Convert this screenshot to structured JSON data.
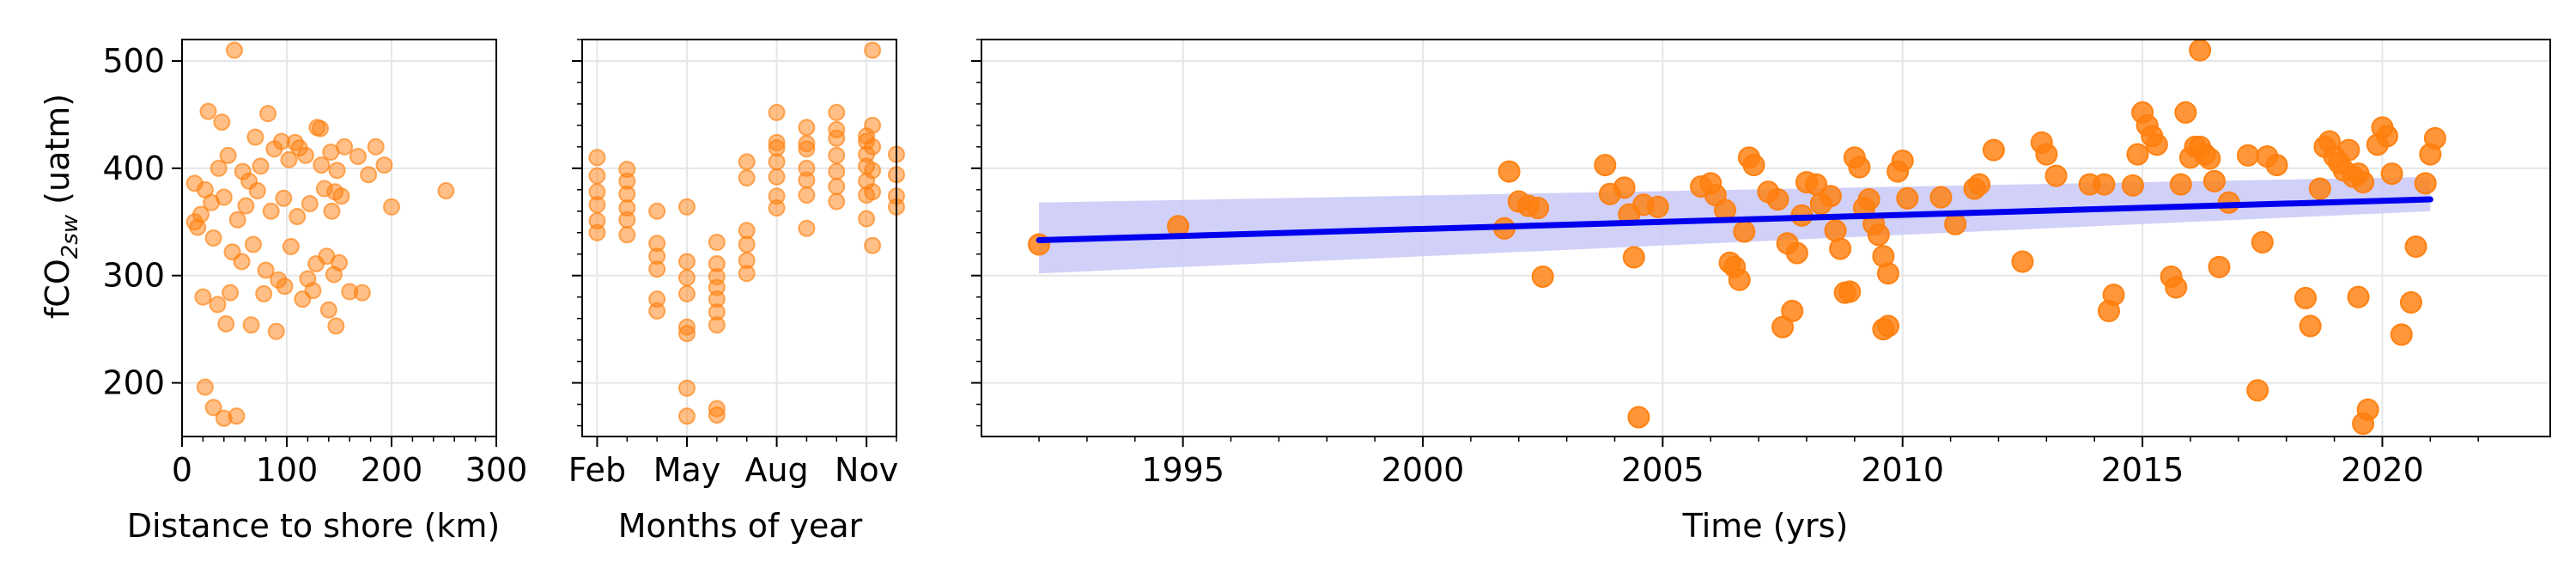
{
  "chart_data": [
    {
      "panel": "distance",
      "type": "scatter",
      "xlabel": "Distance to shore (km)",
      "ylabel_main": "fCO",
      "ylabel_sub": "2sw",
      "ylabel_unit": " (uatm)",
      "xlim": [
        0,
        300
      ],
      "ylim": [
        150,
        520
      ],
      "x_ticks": [
        0,
        100,
        200,
        300
      ],
      "y_ticks": [
        200,
        300,
        400,
        500
      ],
      "grid": true,
      "points": [
        [
          50,
          510
        ],
        [
          25,
          453
        ],
        [
          38,
          443
        ],
        [
          82,
          451
        ],
        [
          129,
          438
        ],
        [
          95,
          425
        ],
        [
          108,
          424
        ],
        [
          185,
          420
        ],
        [
          70,
          429
        ],
        [
          12,
          386
        ],
        [
          22,
          380
        ],
        [
          35,
          400
        ],
        [
          44,
          412
        ],
        [
          58,
          397
        ],
        [
          64,
          388
        ],
        [
          75,
          402
        ],
        [
          88,
          418
        ],
        [
          102,
          408
        ],
        [
          118,
          412
        ],
        [
          133,
          403
        ],
        [
          142,
          415
        ],
        [
          148,
          398
        ],
        [
          155,
          420
        ],
        [
          168,
          411
        ],
        [
          178,
          394
        ],
        [
          193,
          403
        ],
        [
          15,
          345
        ],
        [
          18,
          357
        ],
        [
          28,
          368
        ],
        [
          40,
          373
        ],
        [
          53,
          352
        ],
        [
          61,
          365
        ],
        [
          72,
          379
        ],
        [
          85,
          360
        ],
        [
          97,
          372
        ],
        [
          110,
          355
        ],
        [
          122,
          367
        ],
        [
          136,
          381
        ],
        [
          143,
          360
        ],
        [
          152,
          374
        ],
        [
          200,
          364
        ],
        [
          252,
          379
        ],
        [
          30,
          335
        ],
        [
          48,
          322
        ],
        [
          57,
          313
        ],
        [
          68,
          329
        ],
        [
          80,
          305
        ],
        [
          92,
          296
        ],
        [
          104,
          327
        ],
        [
          120,
          297
        ],
        [
          128,
          311
        ],
        [
          138,
          318
        ],
        [
          145,
          301
        ],
        [
          150,
          312
        ],
        [
          20,
          280
        ],
        [
          34,
          273
        ],
        [
          46,
          284
        ],
        [
          66,
          254
        ],
        [
          78,
          283
        ],
        [
          90,
          248
        ],
        [
          98,
          290
        ],
        [
          115,
          278
        ],
        [
          125,
          286
        ],
        [
          140,
          268
        ],
        [
          147,
          253
        ],
        [
          160,
          285
        ],
        [
          172,
          284
        ],
        [
          22,
          196
        ],
        [
          30,
          177
        ],
        [
          40,
          167
        ],
        [
          52,
          169
        ],
        [
          42,
          255
        ],
        [
          12,
          350
        ],
        [
          112,
          419
        ],
        [
          132,
          437
        ],
        [
          146,
          378
        ]
      ]
    },
    {
      "panel": "months",
      "type": "scatter",
      "xlabel": "Months of year",
      "x_tick_labels": [
        "Feb",
        "May",
        "Aug",
        "Nov"
      ],
      "x_tick_values": [
        2,
        5,
        8,
        11
      ],
      "xlim": [
        1.5,
        12.0
      ],
      "ylim": [
        150,
        520
      ],
      "grid": true,
      "points": [
        [
          2,
          410
        ],
        [
          2,
          393
        ],
        [
          2,
          378
        ],
        [
          2,
          366
        ],
        [
          2,
          351
        ],
        [
          2,
          340
        ],
        [
          3,
          399
        ],
        [
          3,
          388
        ],
        [
          3,
          376
        ],
        [
          3,
          363
        ],
        [
          3,
          352
        ],
        [
          3,
          338
        ],
        [
          4,
          360
        ],
        [
          4,
          330
        ],
        [
          4,
          318
        ],
        [
          4,
          306
        ],
        [
          4,
          278
        ],
        [
          4,
          267
        ],
        [
          5,
          364
        ],
        [
          5,
          313
        ],
        [
          5,
          298
        ],
        [
          5,
          283
        ],
        [
          5,
          252
        ],
        [
          5,
          246
        ],
        [
          5,
          195
        ],
        [
          5,
          169
        ],
        [
          6,
          331
        ],
        [
          6,
          311
        ],
        [
          6,
          299
        ],
        [
          6,
          289
        ],
        [
          6,
          278
        ],
        [
          6,
          266
        ],
        [
          6,
          254
        ],
        [
          6,
          176
        ],
        [
          6,
          170
        ],
        [
          7,
          342
        ],
        [
          7,
          329
        ],
        [
          7,
          314
        ],
        [
          7,
          302
        ],
        [
          7,
          406
        ],
        [
          7,
          391
        ],
        [
          8,
          452
        ],
        [
          8,
          424
        ],
        [
          8,
          406
        ],
        [
          8,
          392
        ],
        [
          8,
          374
        ],
        [
          8,
          363
        ],
        [
          8,
          419
        ],
        [
          9,
          438
        ],
        [
          9,
          418
        ],
        [
          9,
          400
        ],
        [
          9,
          389
        ],
        [
          9,
          375
        ],
        [
          9,
          344
        ],
        [
          9,
          423
        ],
        [
          10,
          452
        ],
        [
          10,
          428
        ],
        [
          10,
          412
        ],
        [
          10,
          397
        ],
        [
          10,
          383
        ],
        [
          10,
          369
        ],
        [
          10,
          436
        ],
        [
          11,
          425
        ],
        [
          11,
          413
        ],
        [
          11,
          402
        ],
        [
          11,
          388
        ],
        [
          11,
          375
        ],
        [
          11,
          353
        ],
        [
          11,
          430
        ],
        [
          11.2,
          510
        ],
        [
          11.2,
          440
        ],
        [
          11.2,
          420
        ],
        [
          11.2,
          398
        ],
        [
          11.2,
          378
        ],
        [
          11.2,
          328
        ],
        [
          12,
          413
        ],
        [
          12,
          394
        ],
        [
          12,
          374
        ],
        [
          12,
          364
        ]
      ]
    },
    {
      "panel": "time",
      "type": "scatter",
      "xlabel": "Time (yrs)",
      "xlim": [
        1990.8,
        2023.5
      ],
      "ylim": [
        150,
        520
      ],
      "x_ticks": [
        1995,
        2000,
        2005,
        2010,
        2015,
        2020
      ],
      "grid": true,
      "trend": {
        "x": [
          1992.0,
          2021.0
        ],
        "y": [
          333,
          371
        ],
        "band_lower": [
          302,
          360
        ],
        "band_upper": [
          368,
          392
        ]
      },
      "colors": {
        "points": "#ff7f0e",
        "trend": "#0000ee",
        "band": "#c8c8f8"
      },
      "points": [
        [
          1992.0,
          329
        ],
        [
          1994.9,
          346
        ],
        [
          2001.8,
          397
        ],
        [
          2001.7,
          344
        ],
        [
          2002.0,
          369
        ],
        [
          2002.2,
          365
        ],
        [
          2002.4,
          363
        ],
        [
          2002.5,
          299
        ],
        [
          2003.8,
          403
        ],
        [
          2003.9,
          376
        ],
        [
          2004.2,
          382
        ],
        [
          2004.3,
          357
        ],
        [
          2004.4,
          317
        ],
        [
          2004.6,
          366
        ],
        [
          2004.5,
          168
        ],
        [
          2004.9,
          364
        ],
        [
          2005.8,
          383
        ],
        [
          2006.0,
          386
        ],
        [
          2006.1,
          375
        ],
        [
          2006.3,
          361
        ],
        [
          2006.4,
          312
        ],
        [
          2006.5,
          308
        ],
        [
          2006.6,
          296
        ],
        [
          2006.8,
          410
        ],
        [
          2006.9,
          403
        ],
        [
          2006.7,
          341
        ],
        [
          2007.2,
          378
        ],
        [
          2007.4,
          371
        ],
        [
          2007.6,
          330
        ],
        [
          2007.8,
          321
        ],
        [
          2007.9,
          356
        ],
        [
          2007.5,
          252
        ],
        [
          2007.7,
          267
        ],
        [
          2008.0,
          387
        ],
        [
          2008.2,
          385
        ],
        [
          2008.3,
          367
        ],
        [
          2008.5,
          374
        ],
        [
          2008.6,
          342
        ],
        [
          2008.7,
          325
        ],
        [
          2008.8,
          284
        ],
        [
          2008.9,
          285
        ],
        [
          2009.0,
          410
        ],
        [
          2009.1,
          401
        ],
        [
          2009.2,
          363
        ],
        [
          2009.3,
          371
        ],
        [
          2009.4,
          348
        ],
        [
          2009.5,
          338
        ],
        [
          2009.6,
          318
        ],
        [
          2009.7,
          302
        ],
        [
          2009.6,
          250
        ],
        [
          2009.7,
          253
        ],
        [
          2009.9,
          397
        ],
        [
          2010.0,
          407
        ],
        [
          2010.1,
          372
        ],
        [
          2010.8,
          373
        ],
        [
          2011.1,
          348
        ],
        [
          2011.5,
          381
        ],
        [
          2011.6,
          385
        ],
        [
          2011.9,
          417
        ],
        [
          2012.5,
          313
        ],
        [
          2012.9,
          424
        ],
        [
          2013.0,
          413
        ],
        [
          2013.2,
          393
        ],
        [
          2013.9,
          385
        ],
        [
          2014.2,
          385
        ],
        [
          2014.3,
          267
        ],
        [
          2014.4,
          282
        ],
        [
          2014.8,
          384
        ],
        [
          2014.9,
          413
        ],
        [
          2015.0,
          452
        ],
        [
          2015.1,
          440
        ],
        [
          2015.2,
          430
        ],
        [
          2015.3,
          422
        ],
        [
          2015.6,
          299
        ],
        [
          2015.7,
          289
        ],
        [
          2015.8,
          385
        ],
        [
          2015.9,
          452
        ],
        [
          2016.0,
          410
        ],
        [
          2016.1,
          420
        ],
        [
          2016.2,
          420
        ],
        [
          2016.3,
          413
        ],
        [
          2016.4,
          409
        ],
        [
          2016.2,
          510
        ],
        [
          2016.5,
          388
        ],
        [
          2016.6,
          308
        ],
        [
          2016.8,
          368
        ],
        [
          2017.2,
          412
        ],
        [
          2017.4,
          193
        ],
        [
          2017.5,
          331
        ],
        [
          2017.6,
          411
        ],
        [
          2017.8,
          403
        ],
        [
          2018.4,
          279
        ],
        [
          2018.5,
          253
        ],
        [
          2018.7,
          381
        ],
        [
          2018.8,
          420
        ],
        [
          2018.9,
          425
        ],
        [
          2019.0,
          411
        ],
        [
          2019.1,
          405
        ],
        [
          2019.2,
          398
        ],
        [
          2019.3,
          417
        ],
        [
          2019.4,
          392
        ],
        [
          2019.5,
          395
        ],
        [
          2019.6,
          387
        ],
        [
          2019.5,
          280
        ],
        [
          2019.6,
          162
        ],
        [
          2019.7,
          175
        ],
        [
          2019.9,
          422
        ],
        [
          2020.0,
          438
        ],
        [
          2020.1,
          430
        ],
        [
          2020.2,
          395
        ],
        [
          2020.4,
          245
        ],
        [
          2020.6,
          275
        ],
        [
          2020.7,
          327
        ],
        [
          2020.9,
          386
        ],
        [
          2021.0,
          413
        ],
        [
          2021.1,
          428
        ]
      ]
    }
  ]
}
